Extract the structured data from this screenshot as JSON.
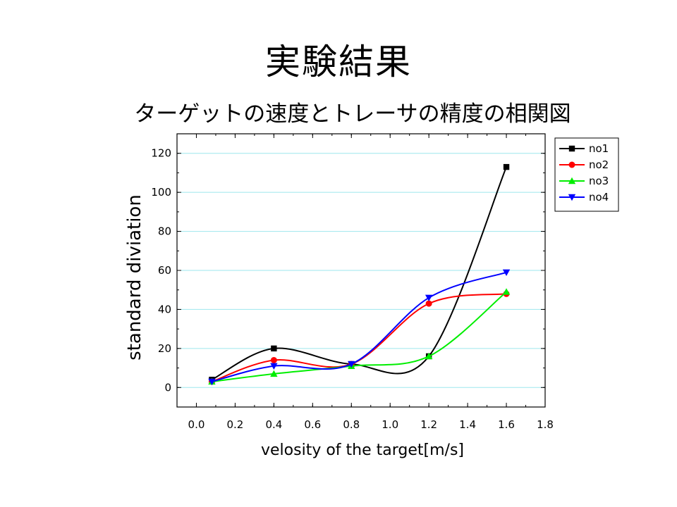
{
  "slide": {
    "title": "実験結果",
    "subtitle": "ターゲットの速度とトレーサの精度の相関図"
  },
  "chart_data": {
    "type": "line",
    "xlabel": "velosity of the target[m/s]",
    "ylabel": "standard diviation",
    "xlim": [
      -0.1,
      1.8
    ],
    "ylim": [
      -10,
      130
    ],
    "xticks": [
      "0.0",
      "0.2",
      "0.4",
      "0.6",
      "0.8",
      "1.0",
      "1.2",
      "1.4",
      "1.6",
      "1.8"
    ],
    "yticks": [
      "0",
      "20",
      "40",
      "60",
      "80",
      "100",
      "120"
    ],
    "grid": "horizontal",
    "legend_position": "top-right outside",
    "series": [
      {
        "name": "no1",
        "color": "#000000",
        "marker": "square",
        "x": [
          0.08,
          0.4,
          0.8,
          1.2,
          1.6
        ],
        "y": [
          4,
          20,
          12,
          16,
          113
        ]
      },
      {
        "name": "no2",
        "color": "#ff0000",
        "marker": "circle",
        "x": [
          0.08,
          0.4,
          0.8,
          1.2,
          1.6
        ],
        "y": [
          3,
          14,
          12,
          43,
          48
        ]
      },
      {
        "name": "no3",
        "color": "#00ee00",
        "marker": "triangle-up",
        "x": [
          0.08,
          0.4,
          0.8,
          1.2,
          1.6
        ],
        "y": [
          3,
          7,
          11,
          16,
          49
        ]
      },
      {
        "name": "no4",
        "color": "#0000ff",
        "marker": "triangle-down",
        "x": [
          0.08,
          0.4,
          0.8,
          1.2,
          1.6
        ],
        "y": [
          3,
          11,
          12,
          46,
          59
        ]
      }
    ]
  }
}
